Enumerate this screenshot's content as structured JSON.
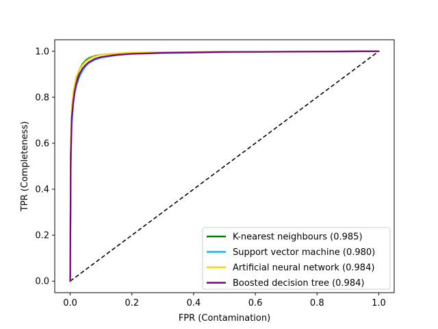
{
  "chart_data": {
    "type": "line",
    "title": "",
    "xlabel": "FPR (Contamination)",
    "ylabel": "TPR (Completeness)",
    "xlim": [
      -0.05,
      1.05
    ],
    "ylim": [
      -0.05,
      1.05
    ],
    "xticks": [
      0.0,
      0.2,
      0.4,
      0.6,
      0.8,
      1.0
    ],
    "yticks": [
      0.0,
      0.2,
      0.4,
      0.6,
      0.8,
      1.0
    ],
    "xtick_labels": [
      "0.0",
      "0.2",
      "0.4",
      "0.6",
      "0.8",
      "1.0"
    ],
    "ytick_labels": [
      "0.0",
      "0.2",
      "0.4",
      "0.6",
      "0.8",
      "1.0"
    ],
    "grid": false,
    "legend_position": "lower-right",
    "series": [
      {
        "name": "K-nearest neighbours (0.985)",
        "color": "#008000",
        "x": [
          0,
          0.002,
          0.005,
          0.01,
          0.015,
          0.02,
          0.03,
          0.04,
          0.05,
          0.06,
          0.08,
          0.1,
          0.15,
          0.2,
          0.3,
          0.5,
          0.7,
          1.0
        ],
        "y": [
          0,
          0.55,
          0.72,
          0.8,
          0.85,
          0.88,
          0.92,
          0.945,
          0.96,
          0.97,
          0.98,
          0.985,
          0.99,
          0.993,
          0.995,
          0.997,
          0.998,
          1.0
        ]
      },
      {
        "name": "Support vector machine (0.980)",
        "color": "#1ab5e6",
        "x": [
          0,
          0.002,
          0.005,
          0.01,
          0.015,
          0.02,
          0.03,
          0.04,
          0.05,
          0.06,
          0.08,
          0.1,
          0.15,
          0.2,
          0.3,
          0.5,
          0.7,
          1.0
        ],
        "y": [
          0,
          0.5,
          0.68,
          0.77,
          0.82,
          0.85,
          0.89,
          0.915,
          0.935,
          0.948,
          0.963,
          0.972,
          0.983,
          0.988,
          0.992,
          0.996,
          0.998,
          1.0
        ]
      },
      {
        "name": "Artificial neural network (0.984)",
        "color": "#f5d800",
        "x": [
          0,
          0.002,
          0.005,
          0.01,
          0.015,
          0.02,
          0.03,
          0.04,
          0.05,
          0.06,
          0.08,
          0.1,
          0.15,
          0.2,
          0.3,
          0.5,
          0.7,
          1.0
        ],
        "y": [
          0,
          0.58,
          0.75,
          0.82,
          0.86,
          0.89,
          0.92,
          0.94,
          0.955,
          0.965,
          0.978,
          0.985,
          0.991,
          0.994,
          0.996,
          0.997,
          0.998,
          1.0
        ]
      },
      {
        "name": "Boosted decision tree (0.984)",
        "color": "#800080",
        "x": [
          0,
          0.002,
          0.005,
          0.01,
          0.015,
          0.02,
          0.03,
          0.04,
          0.05,
          0.06,
          0.08,
          0.1,
          0.15,
          0.2,
          0.3,
          0.5,
          0.7,
          1.0
        ],
        "y": [
          0,
          0.55,
          0.71,
          0.78,
          0.83,
          0.86,
          0.9,
          0.925,
          0.94,
          0.952,
          0.967,
          0.975,
          0.984,
          0.989,
          0.993,
          0.997,
          0.998,
          1.0
        ]
      }
    ],
    "reference_line": {
      "style": "dashed",
      "color": "#000000",
      "x": [
        0,
        1
      ],
      "y": [
        0,
        1
      ]
    }
  }
}
